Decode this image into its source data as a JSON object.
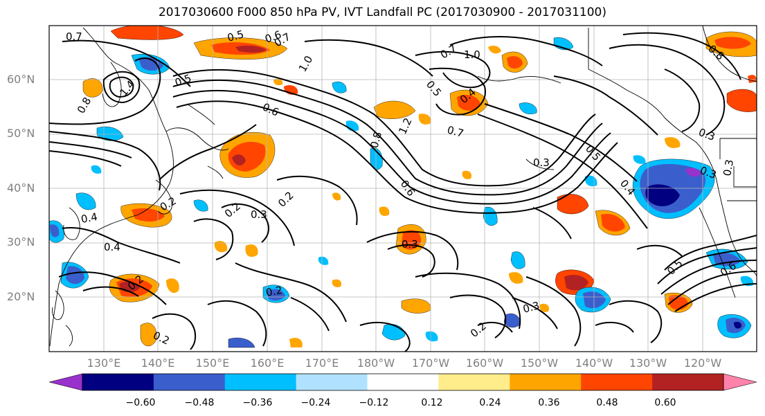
{
  "title": "2017030600 F000 850 hPa PV, IVT Landfall PC (2017030900 - 2017031100)",
  "axes": {
    "lat_labels": [
      "60°N",
      "50°N",
      "40°N",
      "30°N",
      "20°N"
    ],
    "lon_labels": [
      "130°E",
      "140°E",
      "150°E",
      "160°E",
      "170°E",
      "180°W",
      "170°W",
      "160°W",
      "150°W",
      "140°W",
      "130°W",
      "120°W"
    ]
  },
  "contour_labels": [
    "0.7",
    "0.5",
    "0.6",
    "1.4",
    "0.8",
    "0.5",
    "0.7",
    "1.0",
    "0.6",
    "0.8",
    "1.2",
    "0.6",
    "0.7",
    "1.0",
    "0.5",
    "0.4",
    "0.3",
    "0.5",
    "0.4",
    "0.3",
    "0.3",
    "0.2",
    "0.3",
    "0.2",
    "0.2",
    "0.4",
    "0.4",
    "0.3",
    "0.2",
    "0.2",
    "0.3",
    "0.2",
    "0.5",
    "0.6",
    "0.2",
    "0.7",
    "0.8",
    "0.3"
  ],
  "colorbar": {
    "colors": [
      "#9932cc",
      "#000080",
      "#3a5fcd",
      "#00bfff",
      "#b0e2ff",
      "#ffffff",
      "#ffec8b",
      "#ffa500",
      "#ff4500",
      "#b22222",
      "#ff82ab"
    ],
    "tick_labels": [
      "−0.60",
      "−0.48",
      "−0.36",
      "−0.24",
      "−0.12",
      "0.12",
      "0.24",
      "0.36",
      "0.48",
      "0.60"
    ]
  }
}
